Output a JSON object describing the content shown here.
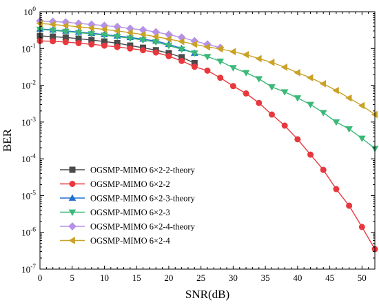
{
  "chart_data": {
    "type": "line",
    "title": "",
    "xlabel": "SNR(dB)",
    "ylabel": "BER",
    "xlim": [
      0,
      52
    ],
    "ylim": [
      1e-07,
      1
    ],
    "yscale": "log",
    "xticks": [
      0,
      5,
      10,
      15,
      20,
      25,
      30,
      35,
      40,
      45,
      50
    ],
    "yticks": [
      {
        "value": 1,
        "base": "10",
        "exp": "0"
      },
      {
        "value": 0.1,
        "base": "10",
        "exp": "-1"
      },
      {
        "value": 0.01,
        "base": "10",
        "exp": "-2"
      },
      {
        "value": 0.001,
        "base": "10",
        "exp": "-3"
      },
      {
        "value": 0.0001,
        "base": "10",
        "exp": "-4"
      },
      {
        "value": 1e-05,
        "base": "10",
        "exp": "-5"
      },
      {
        "value": 1e-06,
        "base": "10",
        "exp": "-6"
      },
      {
        "value": 1e-07,
        "base": "10",
        "exp": "-7"
      }
    ],
    "grid": false,
    "legend_position": "lower-left",
    "x": [
      0,
      2,
      4,
      6,
      8,
      10,
      12,
      14,
      16,
      18,
      20,
      22,
      24
    ],
    "series": [
      {
        "name": "OGSMP-MIMO 6×2-2-theory",
        "color": "#4a4a4a",
        "marker": "square",
        "x": [
          0,
          2,
          4,
          6,
          8,
          10,
          12,
          14,
          16,
          18,
          20,
          22,
          24
        ],
        "values": [
          0.22,
          0.21,
          0.2,
          0.185,
          0.17,
          0.155,
          0.14,
          0.12,
          0.105,
          0.09,
          0.075,
          0.058,
          0.04
        ]
      },
      {
        "name": "OGSMP-MIMO 6×2-2",
        "color": "#e8383d",
        "marker": "circle",
        "x": [
          0,
          2,
          4,
          6,
          8,
          10,
          12,
          14,
          16,
          18,
          20,
          22,
          24,
          26,
          28,
          30,
          32,
          34,
          36,
          38,
          40,
          42,
          44,
          46,
          48,
          50,
          52
        ],
        "values": [
          0.16,
          0.158,
          0.15,
          0.14,
          0.13,
          0.12,
          0.11,
          0.1,
          0.09,
          0.078,
          0.062,
          0.046,
          0.032,
          0.025,
          0.016,
          0.0095,
          0.006,
          0.0033,
          0.0016,
          0.0008,
          0.00034,
          0.00013,
          5e-05,
          1.5e-05,
          5.3e-06,
          1.4e-06,
          3.5e-07
        ]
      },
      {
        "name": "OGSMP-MIMO 6×2-3-theory",
        "color": "#1f6fd1",
        "marker": "triangle-up",
        "x": [
          0,
          2,
          4,
          6,
          8,
          10,
          12,
          14,
          16,
          18,
          20,
          22,
          24
        ],
        "values": [
          0.34,
          0.32,
          0.3,
          0.28,
          0.26,
          0.24,
          0.22,
          0.2,
          0.18,
          0.16,
          0.13,
          0.1,
          0.075
        ]
      },
      {
        "name": "OGSMP-MIMO 6×2-3",
        "color": "#3cb878",
        "marker": "triangle-down",
        "x": [
          0,
          2,
          4,
          6,
          8,
          10,
          12,
          14,
          16,
          18,
          20,
          22,
          24,
          26,
          28,
          30,
          32,
          34,
          36,
          38,
          40,
          42,
          44,
          46,
          48,
          50,
          52
        ],
        "values": [
          0.33,
          0.31,
          0.29,
          0.27,
          0.25,
          0.23,
          0.21,
          0.19,
          0.17,
          0.15,
          0.12,
          0.095,
          0.075,
          0.06,
          0.045,
          0.03,
          0.022,
          0.015,
          0.009,
          0.0066,
          0.0045,
          0.003,
          0.0018,
          0.001,
          0.00065,
          0.00036,
          0.00019
        ]
      },
      {
        "name": "OGSMP-MIMO 6×2-4-theory",
        "color": "#b591e8",
        "marker": "diamond",
        "x": [
          0,
          2,
          4,
          6,
          8,
          10,
          12,
          14,
          16,
          18,
          20,
          22,
          24,
          26,
          28
        ],
        "values": [
          0.56,
          0.54,
          0.52,
          0.48,
          0.45,
          0.42,
          0.39,
          0.35,
          0.32,
          0.28,
          0.24,
          0.2,
          0.16,
          0.13,
          0.105
        ]
      },
      {
        "name": "OGSMP-MIMO 6×2-4",
        "color": "#c9a227",
        "marker": "triangle-left",
        "x": [
          0,
          2,
          4,
          6,
          8,
          10,
          12,
          14,
          16,
          18,
          20,
          22,
          24,
          26,
          28,
          30,
          32,
          34,
          36,
          38,
          40,
          42,
          44,
          46,
          48,
          50,
          52
        ],
        "values": [
          0.48,
          0.45,
          0.42,
          0.39,
          0.36,
          0.33,
          0.3,
          0.27,
          0.24,
          0.21,
          0.18,
          0.155,
          0.13,
          0.11,
          0.098,
          0.082,
          0.068,
          0.053,
          0.042,
          0.031,
          0.022,
          0.016,
          0.011,
          0.0072,
          0.0045,
          0.0028,
          0.0016
        ]
      }
    ]
  }
}
